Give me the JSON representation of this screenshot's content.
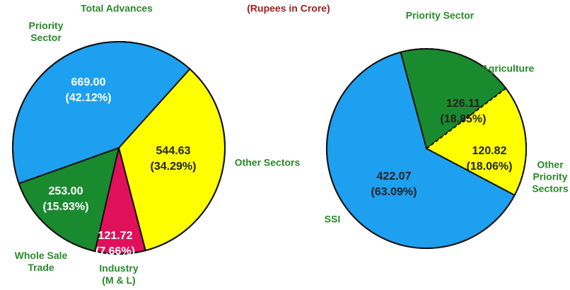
{
  "subtitle": "(Rupees in Crore)",
  "chart_data": [
    {
      "type": "pie",
      "title": "Total Advances",
      "categories": [
        "Other Sectors",
        "Industry (M & L)",
        "Whole Sale Trade",
        "Priority Sector"
      ],
      "values": [
        544.63,
        121.72,
        253,
        669
      ],
      "value_labels": [
        "544.63",
        "121.72",
        "253.00",
        "669.00"
      ],
      "percentages": [
        34.29,
        7.66,
        15.93,
        42.12
      ],
      "percentage_labels": [
        "(34.29%)",
        "(7.66%)",
        "(15.93%)",
        "(42.12%)"
      ],
      "colors": [
        "#ffff00",
        "#e0105a",
        "#1a8a2e",
        "#1ea0f0"
      ],
      "label_colors": [
        "#222222",
        "#ffffff",
        "#ffffff",
        "#ffffff"
      ]
    },
    {
      "type": "pie",
      "title": "Priority Sector",
      "categories": [
        "Agriculture",
        "Other Priority Sectors",
        "SSI"
      ],
      "values": [
        126.11,
        120.82,
        422.07
      ],
      "value_labels": [
        "126.11",
        "120.82",
        "422.07"
      ],
      "percentages": [
        18.85,
        18.06,
        63.09
      ],
      "percentage_labels": [
        "(18.85%)",
        "(18.06%)",
        "(63.09%)"
      ],
      "colors": [
        "#1a8a2e",
        "#ffff00",
        "#1ea0f0"
      ],
      "label_colors": [
        "#222222",
        "#222222",
        "#222222"
      ],
      "dashed": [
        true,
        true,
        false
      ]
    }
  ]
}
